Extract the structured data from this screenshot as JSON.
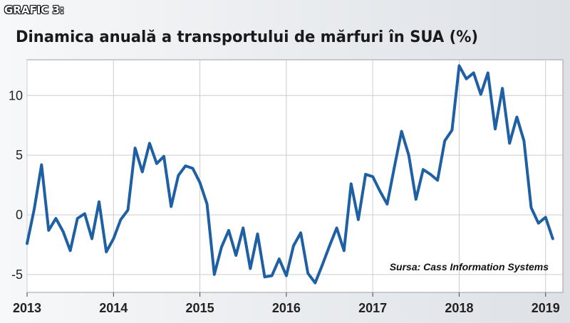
{
  "header": {
    "label": "GRAFIC 3:",
    "title": "Dinamica anuală a transportului de mărfuri în SUA (%)"
  },
  "source": "Sursa: Cass Information Systems",
  "colors": {
    "line": "#1f5fa3",
    "grid": "#c9ccd0",
    "plot_bg": "#ffffff"
  },
  "chart_data": {
    "type": "line",
    "title": "Dinamica anuală a transportului de mărfuri în SUA (%)",
    "xlabel": "",
    "ylabel": "",
    "xlim": [
      2013,
      2019.2
    ],
    "ylim": [
      -6.5,
      13
    ],
    "grid": true,
    "x_ticks": [
      2013,
      2014,
      2015,
      2016,
      2017,
      2018,
      2019
    ],
    "y_ticks": [
      -5,
      0,
      5,
      10
    ],
    "series": [
      {
        "color": "#1f5fa3",
        "x": [
          2013.0,
          2013.083,
          2013.167,
          2013.25,
          2013.333,
          2013.417,
          2013.5,
          2013.583,
          2013.667,
          2013.75,
          2013.833,
          2013.917,
          2014.0,
          2014.083,
          2014.167,
          2014.25,
          2014.333,
          2014.417,
          2014.5,
          2014.583,
          2014.667,
          2014.75,
          2014.833,
          2014.917,
          2015.0,
          2015.083,
          2015.167,
          2015.25,
          2015.333,
          2015.417,
          2015.5,
          2015.583,
          2015.667,
          2015.75,
          2015.833,
          2015.917,
          2016.0,
          2016.083,
          2016.167,
          2016.25,
          2016.333,
          2016.417,
          2016.5,
          2016.583,
          2016.667,
          2016.75,
          2016.833,
          2016.917,
          2017.0,
          2017.083,
          2017.167,
          2017.25,
          2017.333,
          2017.417,
          2017.5,
          2017.583,
          2017.667,
          2017.75,
          2017.833,
          2017.917,
          2018.0,
          2018.083,
          2018.167,
          2018.25,
          2018.333,
          2018.417,
          2018.5,
          2018.583,
          2018.667,
          2018.75,
          2018.833,
          2018.917,
          2019.0,
          2019.083
        ],
        "y": [
          -2.4,
          0.5,
          4.2,
          -1.3,
          -0.3,
          -1.4,
          -3.0,
          -0.3,
          0.1,
          -2.0,
          1.1,
          -3.1,
          -2.0,
          -0.4,
          0.4,
          5.6,
          3.6,
          6.0,
          4.3,
          4.9,
          0.7,
          3.3,
          4.1,
          3.9,
          2.7,
          0.9,
          -5.0,
          -2.7,
          -1.3,
          -3.4,
          -1.1,
          -4.5,
          -1.6,
          -5.2,
          -5.1,
          -3.7,
          -5.1,
          -2.6,
          -1.5,
          -4.9,
          -5.7,
          -4.2,
          -2.6,
          -1.1,
          -3.0,
          2.6,
          -0.4,
          3.4,
          3.2,
          2.0,
          0.9,
          4.0,
          7.0,
          5.0,
          1.3,
          3.8,
          3.4,
          2.9,
          6.2,
          7.1,
          12.5,
          11.4,
          11.9,
          10.1,
          11.9,
          7.2,
          10.6,
          6.0,
          8.2,
          6.2,
          0.6,
          -0.7,
          -0.2,
          -2.0
        ]
      }
    ]
  }
}
